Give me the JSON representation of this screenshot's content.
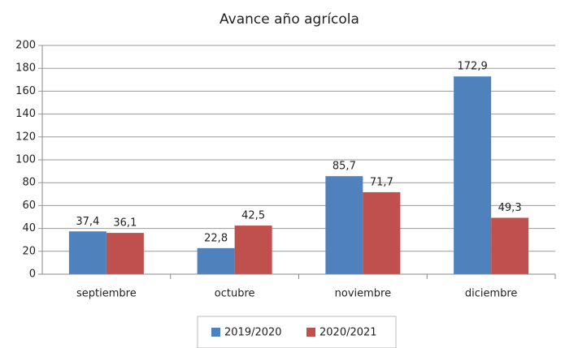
{
  "chart_data": {
    "type": "bar",
    "title": "Avance año agrícola",
    "categories": [
      "septiembre",
      "octubre",
      "noviembre",
      "diciembre"
    ],
    "series": [
      {
        "name": "2019/2020",
        "color": "#4f81bd",
        "values": [
          37.4,
          22.8,
          85.7,
          172.9
        ],
        "value_labels": [
          "37,4",
          "22,8",
          "85,7",
          "172,9"
        ]
      },
      {
        "name": "2020/2021",
        "color": "#c0504d",
        "values": [
          36.1,
          42.5,
          71.7,
          49.3
        ],
        "value_labels": [
          "36,1",
          "42,5",
          "71,7",
          "49,3"
        ]
      }
    ],
    "ylim": [
      0,
      200
    ],
    "yticks": [
      0,
      20,
      40,
      60,
      80,
      100,
      120,
      140,
      160,
      180,
      200
    ],
    "grid": true,
    "legend": "bottom"
  }
}
